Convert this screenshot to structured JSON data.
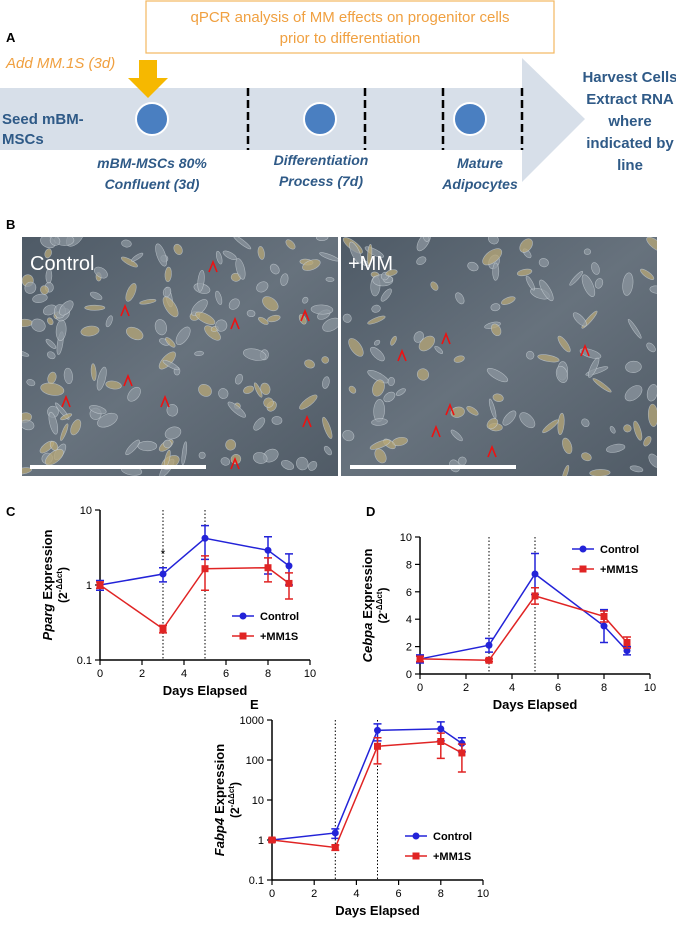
{
  "panel_labels": [
    "A",
    "B",
    "C",
    "D",
    "E"
  ],
  "schematic": {
    "qpcr_box": [
      "qPCR analysis of MM effects on progenitor cells",
      "prior to differentiation"
    ],
    "add_label": "Add MM.1S (3d)",
    "start_label": [
      "Seed mBM-",
      "MSCs"
    ],
    "stages": [
      [
        "mBM-MSCs 80%",
        "Confluent (3d)"
      ],
      [
        "Differentiation",
        "Process (7d)"
      ],
      [
        "Mature",
        "Adipocytes"
      ]
    ],
    "end_label": [
      "Harvest Cells",
      "Extract RNA",
      "where",
      "indicated by",
      "line"
    ]
  },
  "micrographs": [
    {
      "label": "Control"
    },
    {
      "label": "+MM"
    }
  ],
  "chart_data": [
    {
      "type": "line",
      "ylabel_gene": "Pparg",
      "ylabel": "Expression",
      "ylabel_unit": [
        "(2",
        "-ΔΔct",
        ")"
      ],
      "xlabel": "Days Elapsed",
      "x": [
        0,
        3,
        5,
        8,
        9
      ],
      "xlim": [
        0,
        10
      ],
      "xticks": [
        0,
        2,
        4,
        6,
        8,
        10
      ],
      "ylim": [
        0.1,
        10
      ],
      "yticks": [
        0.1,
        1,
        10
      ],
      "log_y": true,
      "legend": "lower right",
      "reference_lines_x": [
        3,
        5
      ],
      "annotations": [
        {
          "text": "*",
          "x": 3,
          "y": 2.3
        }
      ],
      "series": [
        {
          "name": "Control",
          "color": "#2323d8",
          "marker": "circle",
          "values": [
            1.0,
            1.4,
            4.2,
            2.9,
            1.8
          ],
          "errors": [
            0.15,
            0.3,
            2.0,
            1.5,
            0.8
          ]
        },
        {
          "name": "+MM1S",
          "color": "#e02424",
          "marker": "square",
          "values": [
            1.0,
            0.26,
            1.65,
            1.7,
            1.05
          ],
          "errors": [
            0.1,
            0.03,
            0.8,
            0.6,
            0.4
          ]
        }
      ]
    },
    {
      "type": "line",
      "ylabel_gene": "Cebpa",
      "ylabel": "Expression",
      "ylabel_unit": [
        "(2",
        "-ΔΔct",
        ")"
      ],
      "xlabel": "Days Elapsed",
      "x": [
        0,
        3,
        5,
        8,
        9
      ],
      "xlim": [
        0,
        10
      ],
      "xticks": [
        0,
        2,
        4,
        6,
        8,
        10
      ],
      "ylim": [
        0,
        10
      ],
      "yticks": [
        0,
        2,
        4,
        6,
        8,
        10
      ],
      "log_y": false,
      "legend": "upper right",
      "reference_lines_x": [
        3,
        5
      ],
      "annotations": [],
      "series": [
        {
          "name": "Control",
          "color": "#2323d8",
          "marker": "circle",
          "values": [
            1.1,
            2.1,
            7.3,
            3.5,
            1.7
          ],
          "errors": [
            0.3,
            0.5,
            1.5,
            1.2,
            0.3
          ]
        },
        {
          "name": "+MM1S",
          "color": "#e02424",
          "marker": "square",
          "values": [
            1.1,
            1.0,
            5.7,
            4.2,
            2.3
          ],
          "errors": [
            0.2,
            0.1,
            0.6,
            0.4,
            0.4
          ]
        }
      ]
    },
    {
      "type": "line",
      "ylabel_gene": "Fabp4",
      "ylabel": "Expression",
      "ylabel_unit": [
        "(2",
        "-ΔΔct",
        ")"
      ],
      "xlabel": "Days Elapsed",
      "x": [
        0,
        3,
        5,
        8,
        9
      ],
      "xlim": [
        0,
        10
      ],
      "xticks": [
        0,
        2,
        4,
        6,
        8,
        10
      ],
      "ylim": [
        0.1,
        1000
      ],
      "yticks": [
        0.1,
        1,
        10,
        100,
        1000
      ],
      "log_y": true,
      "legend": "lower right",
      "reference_lines_x": [
        3,
        5
      ],
      "annotations": [],
      "series": [
        {
          "name": "Control",
          "color": "#2323d8",
          "marker": "circle",
          "values": [
            1.0,
            1.5,
            550,
            600,
            260
          ],
          "errors": [
            0.1,
            0.4,
            250,
            300,
            100
          ]
        },
        {
          "name": "+MM1S",
          "color": "#e02424",
          "marker": "square",
          "values": [
            1.0,
            0.65,
            220,
            290,
            150
          ],
          "errors": [
            0.1,
            0.1,
            140,
            180,
            100
          ]
        }
      ]
    }
  ]
}
